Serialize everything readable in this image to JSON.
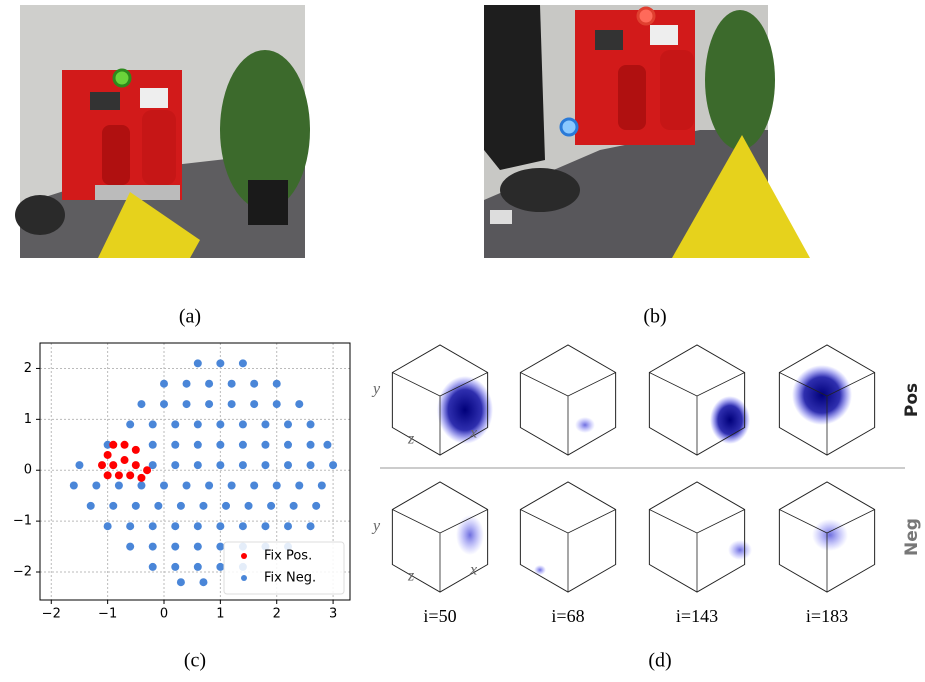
{
  "figure": {
    "panel_labels": [
      "(a)",
      "(b)",
      "(c)",
      "(d)"
    ],
    "cube_grid": {
      "row_labels": [
        "Pos",
        "Neg"
      ],
      "column_labels": [
        "i=50",
        "i=68",
        "i=143",
        "i=183"
      ],
      "axis_labels": [
        "y",
        "z",
        "x"
      ]
    }
  },
  "chart_data": {
    "type": "scatter",
    "xlim": [
      -2.2,
      3.3
    ],
    "ylim": [
      -2.55,
      2.5
    ],
    "xticks": [
      {
        "value": -2,
        "label": "−2"
      },
      {
        "value": -1,
        "label": "−1"
      },
      0,
      1,
      2,
      3
    ],
    "yticks": [
      {
        "value": -2,
        "label": "−2"
      },
      {
        "value": -1,
        "label": "−1"
      },
      0,
      1,
      2
    ],
    "grid": true,
    "legend": "lower right",
    "series": [
      {
        "name": "Fix Pos.",
        "color": "#ff0000",
        "x": [
          -1.1,
          -1.0,
          -0.9,
          -0.7,
          -0.5,
          -0.9,
          -0.7,
          -0.5,
          -0.3,
          -0.8,
          -0.6,
          -1.0,
          -0.4
        ],
        "y": [
          0.1,
          0.3,
          0.5,
          0.5,
          0.4,
          0.1,
          0.2,
          0.1,
          0.0,
          -0.1,
          -0.1,
          -0.1,
          -0.15
        ]
      },
      {
        "name": "Fix Neg.",
        "color": "#4a86d8",
        "x": [
          0.6,
          1.0,
          1.4,
          0,
          0.4,
          0.8,
          1.2,
          1.6,
          2.0,
          -0.4,
          0,
          0.4,
          0.8,
          1.2,
          1.6,
          2.0,
          2.4,
          -0.6,
          -0.2,
          0.2,
          0.6,
          1.0,
          1.4,
          1.8,
          2.2,
          2.6,
          -1.0,
          -0.2,
          0.2,
          0.6,
          1.0,
          1.4,
          1.8,
          2.2,
          2.6,
          2.9,
          -1.5,
          -0.2,
          0.2,
          0.6,
          1.0,
          1.4,
          1.8,
          2.2,
          2.6,
          3.0,
          -1.6,
          -1.2,
          -0.8,
          -0.4,
          0,
          0.4,
          0.8,
          1.2,
          1.6,
          2.0,
          2.4,
          2.8,
          -1.3,
          -0.9,
          -0.5,
          -0.1,
          0.3,
          0.7,
          1.1,
          1.5,
          1.9,
          2.3,
          2.7,
          -1.0,
          -0.6,
          -0.2,
          0.2,
          0.6,
          1.0,
          1.4,
          1.8,
          2.2,
          2.6,
          -0.6,
          -0.2,
          0.2,
          0.6,
          1.0,
          1.4,
          1.8,
          2.2,
          -0.2,
          0.2,
          0.6,
          1.0,
          1.4,
          0.3,
          0.7
        ],
        "y": [
          2.1,
          2.1,
          2.1,
          1.7,
          1.7,
          1.7,
          1.7,
          1.7,
          1.7,
          1.3,
          1.3,
          1.3,
          1.3,
          1.3,
          1.3,
          1.3,
          1.3,
          0.9,
          0.9,
          0.9,
          0.9,
          0.9,
          0.9,
          0.9,
          0.9,
          0.9,
          0.5,
          0.5,
          0.5,
          0.5,
          0.5,
          0.5,
          0.5,
          0.5,
          0.5,
          0.5,
          0.1,
          0.1,
          0.1,
          0.1,
          0.1,
          0.1,
          0.1,
          0.1,
          0.1,
          0.1,
          -0.3,
          -0.3,
          -0.3,
          -0.3,
          -0.3,
          -0.3,
          -0.3,
          -0.3,
          -0.3,
          -0.3,
          -0.3,
          -0.3,
          -0.7,
          -0.7,
          -0.7,
          -0.7,
          -0.7,
          -0.7,
          -0.7,
          -0.7,
          -0.7,
          -0.7,
          -0.7,
          -1.1,
          -1.1,
          -1.1,
          -1.1,
          -1.1,
          -1.1,
          -1.1,
          -1.1,
          -1.1,
          -1.1,
          -1.5,
          -1.5,
          -1.5,
          -1.5,
          -1.5,
          -1.5,
          -1.5,
          -1.5,
          -1.9,
          -1.9,
          -1.9,
          -1.9,
          -1.9,
          -2.2,
          -2.2
        ]
      }
    ]
  }
}
